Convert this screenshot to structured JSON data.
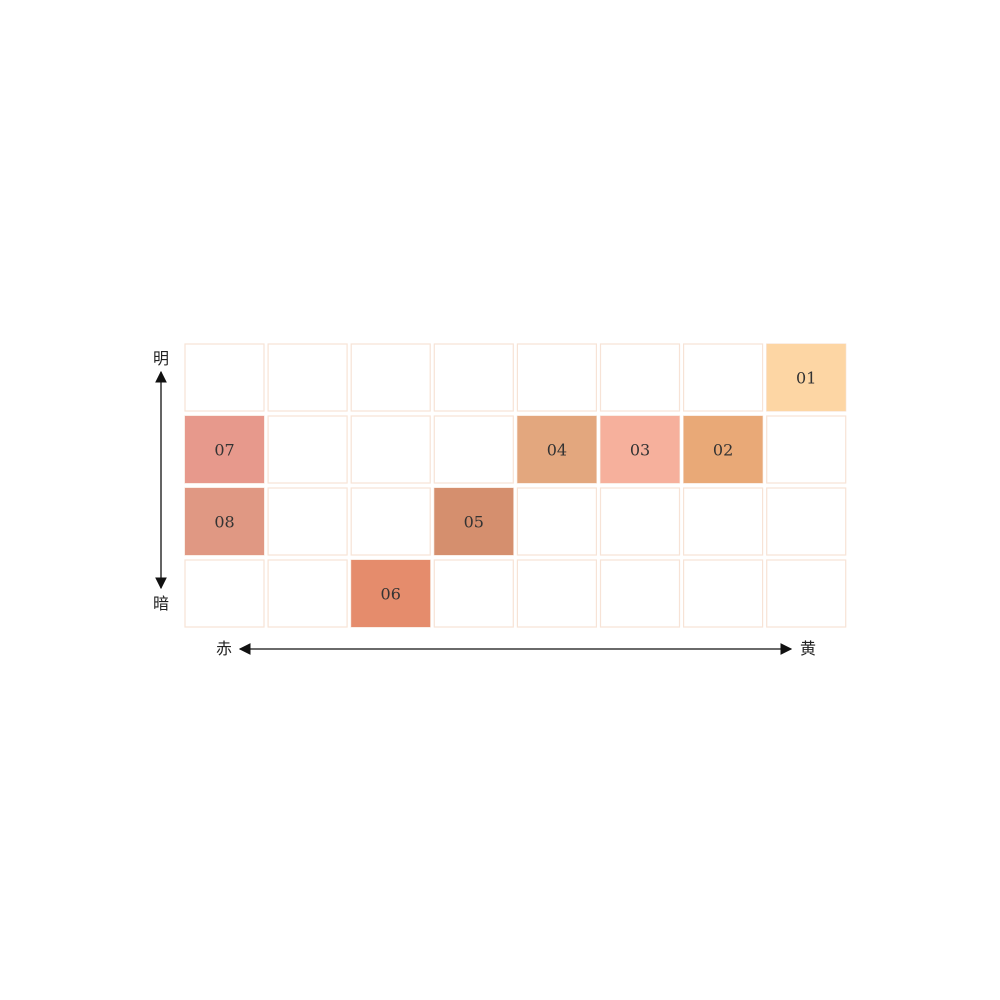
{
  "chart_data": {
    "type": "heatmap",
    "rows": 4,
    "columns": 8,
    "grid_border_color": "#f7e3d6",
    "empty_cell_color": "#ffffff",
    "axes": {
      "vertical": {
        "top_label": "明",
        "bottom_label": "暗"
      },
      "horizontal": {
        "left_label": "赤",
        "right_label": "黄"
      }
    },
    "shades": [
      {
        "label": "01",
        "row": 0,
        "col": 7,
        "color": "#fdd6a4"
      },
      {
        "label": "02",
        "row": 1,
        "col": 6,
        "color": "#e9a977"
      },
      {
        "label": "03",
        "row": 1,
        "col": 5,
        "color": "#f6b09c"
      },
      {
        "label": "04",
        "row": 1,
        "col": 4,
        "color": "#e3a77e"
      },
      {
        "label": "05",
        "row": 2,
        "col": 3,
        "color": "#d58f6e"
      },
      {
        "label": "06",
        "row": 3,
        "col": 2,
        "color": "#e58c6c"
      },
      {
        "label": "07",
        "row": 1,
        "col": 0,
        "color": "#e7998c"
      },
      {
        "label": "08",
        "row": 2,
        "col": 0,
        "color": "#e09883"
      }
    ]
  }
}
